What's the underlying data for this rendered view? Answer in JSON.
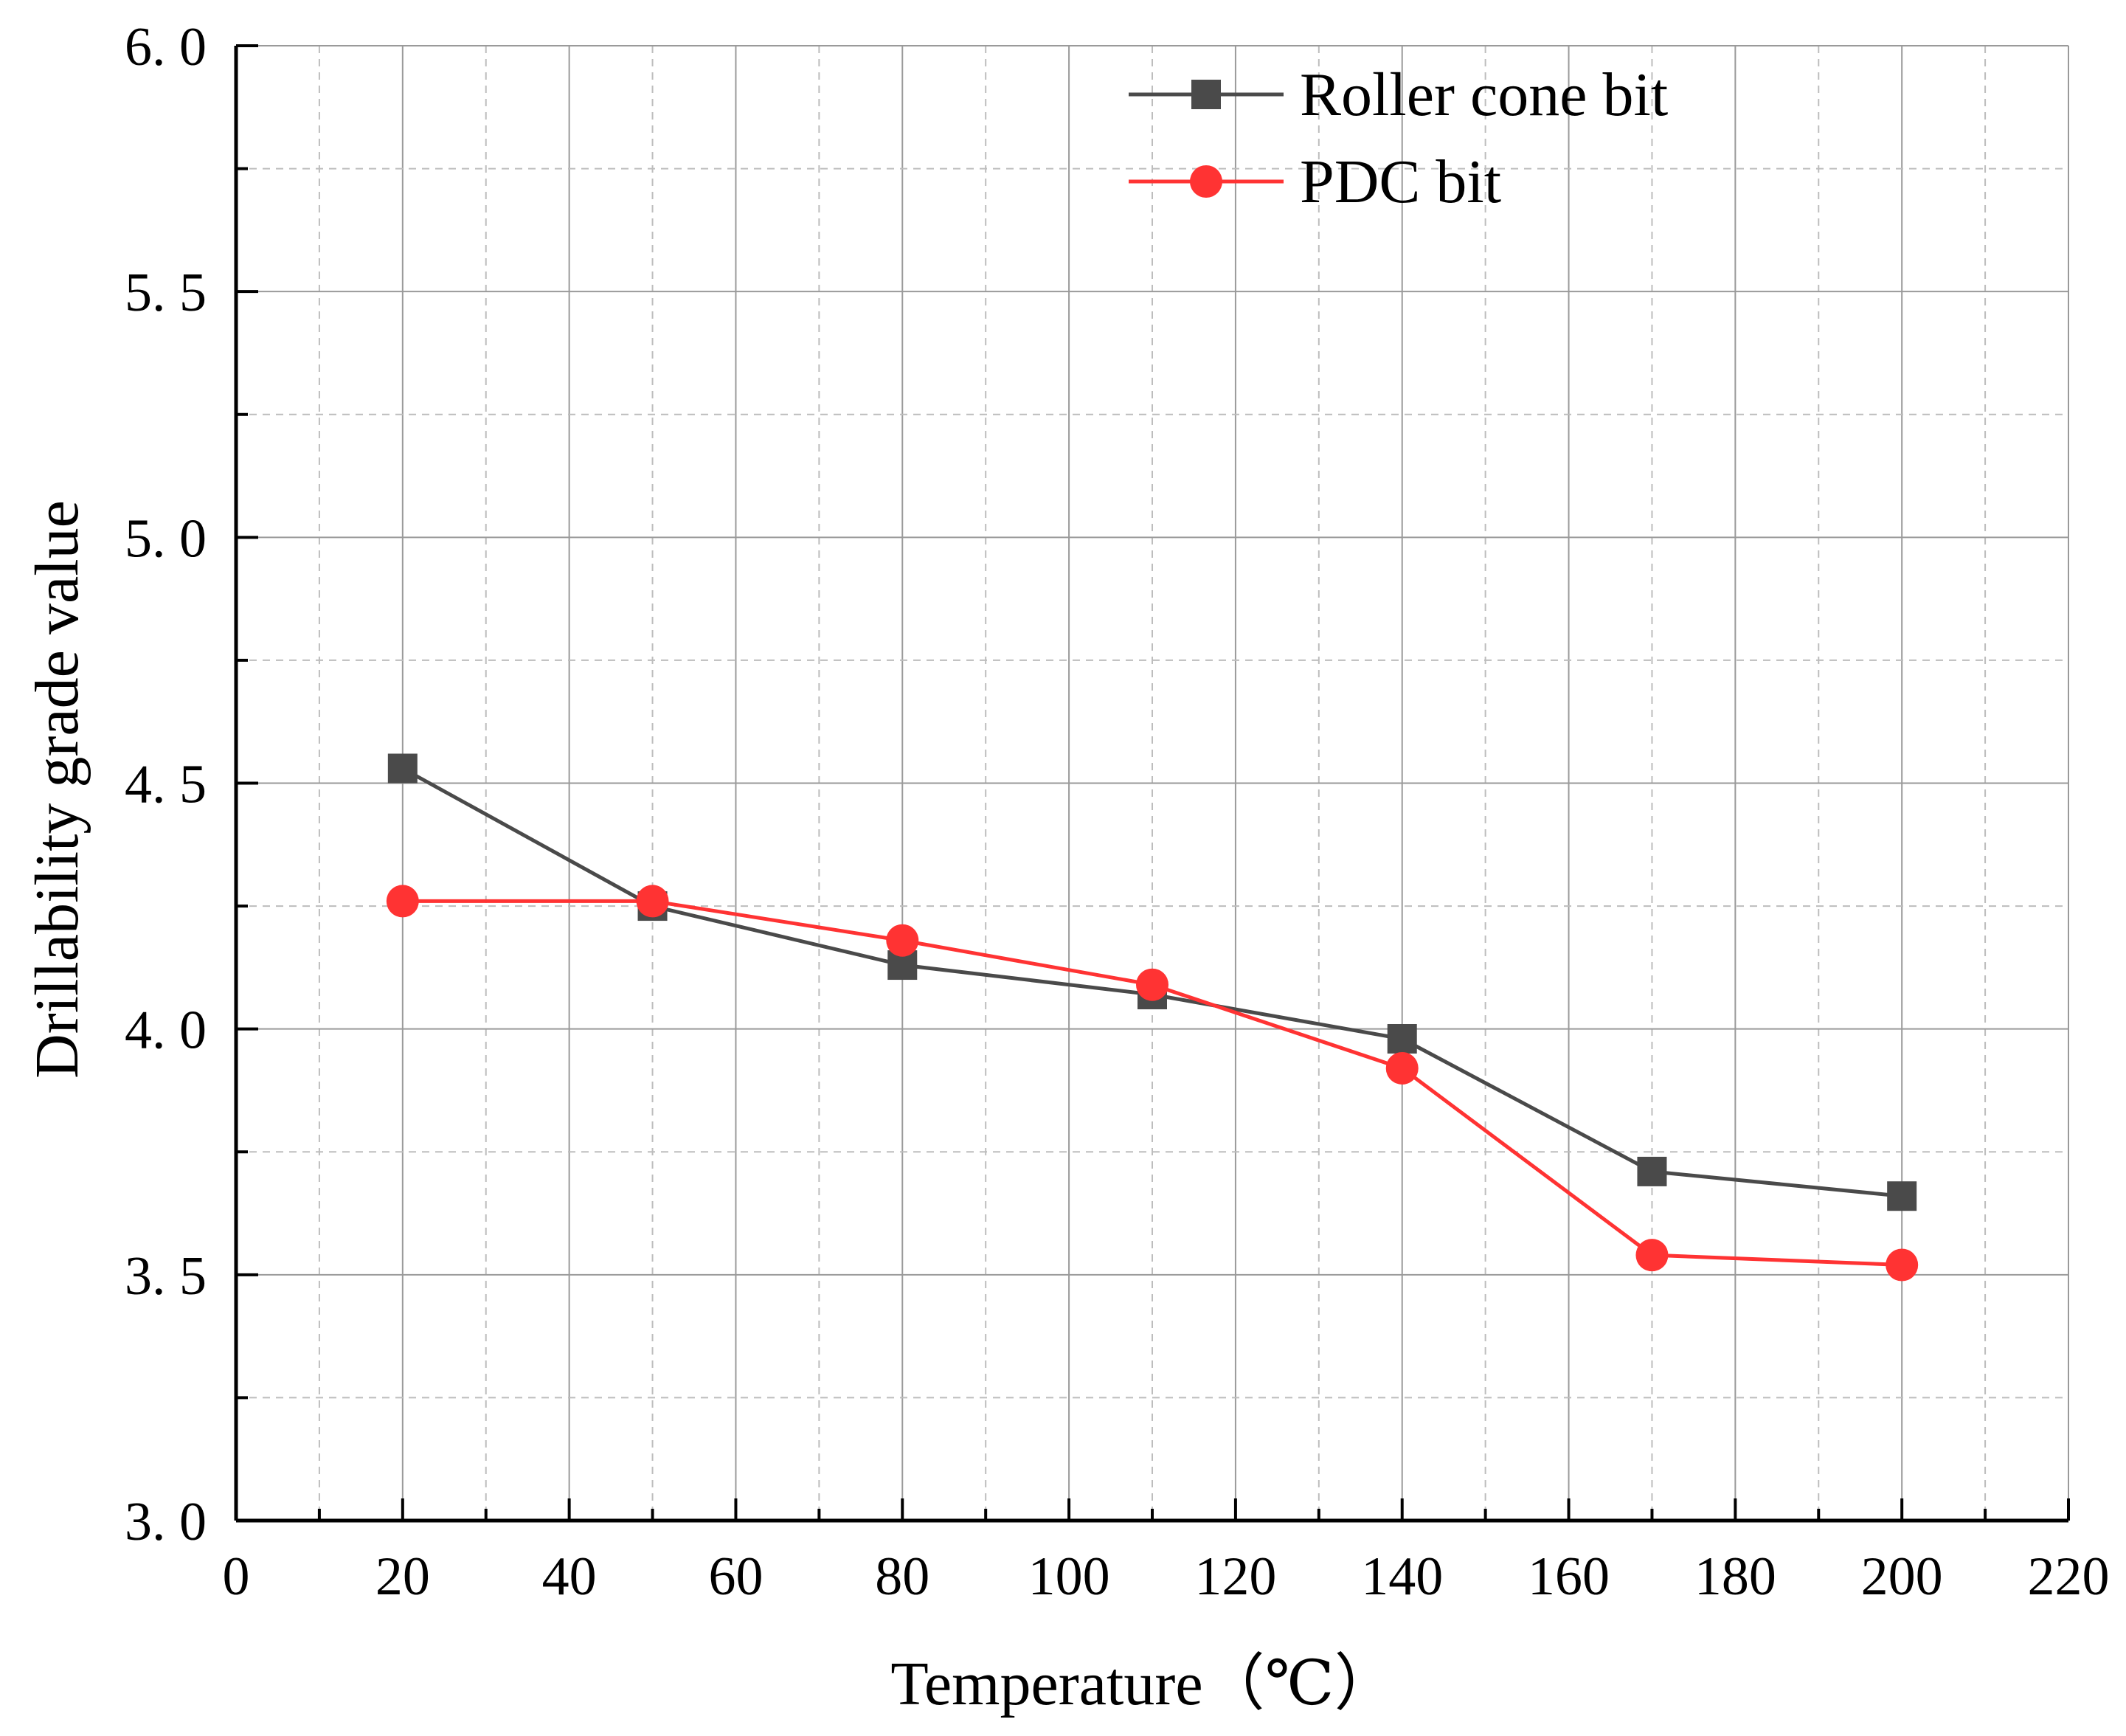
{
  "chart_data": {
    "type": "line",
    "title": "",
    "xlabel": "Temperature（℃）",
    "ylabel": "Drillability grade value",
    "xlim": [
      0,
      220
    ],
    "ylim": [
      3.0,
      6.0
    ],
    "x_ticks": [
      0,
      20,
      40,
      60,
      80,
      100,
      120,
      140,
      160,
      180,
      200,
      220
    ],
    "x_tick_labels": [
      "0",
      "20",
      "40",
      "60",
      "80",
      "100",
      "120",
      "140",
      "160",
      "180",
      "200",
      "220"
    ],
    "y_ticks": [
      3.0,
      3.5,
      4.0,
      4.5,
      5.0,
      5.5,
      6.0
    ],
    "y_tick_labels": [
      "3. 0",
      "3. 5",
      "4. 0",
      "4. 5",
      "5. 0",
      "5. 5",
      "6. 0"
    ],
    "grid": true,
    "legend_position": "top-center",
    "x": [
      20,
      50,
      80,
      110,
      140,
      170,
      200
    ],
    "series": [
      {
        "name": "Roller cone bit",
        "marker": "square",
        "color": "#4a4a4a",
        "values": [
          4.53,
          4.25,
          4.13,
          4.07,
          3.98,
          3.71,
          3.66
        ]
      },
      {
        "name": "PDC bit",
        "marker": "circle",
        "color": "#ff3333",
        "values": [
          4.26,
          4.26,
          4.18,
          4.09,
          3.92,
          3.54,
          3.52
        ]
      }
    ]
  }
}
